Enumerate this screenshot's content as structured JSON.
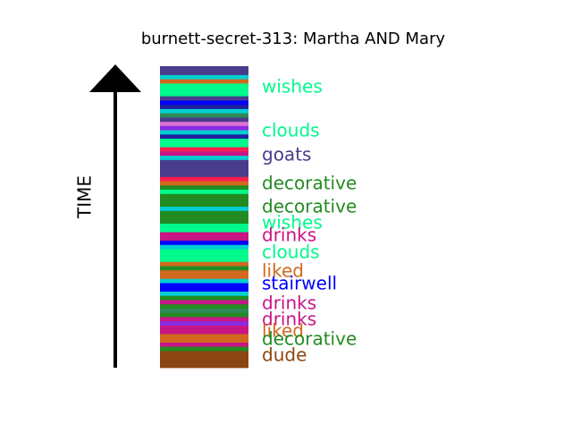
{
  "chart_data": {
    "type": "timeline-strip",
    "title": "burnett-secret-313: Martha AND Mary",
    "axis_label": "TIME",
    "axis_direction": "up",
    "palette": {
      "wishes": "#00fa8c",
      "clouds": "#00fa8c",
      "goats": "#483d8b",
      "decorative": "#228b22",
      "drinks": "#c71585",
      "liked": "#d2691e",
      "stairwell": "#0000ff",
      "dude": "#8b4513",
      "cyan": "#00ced1",
      "red": "#ff1f4f",
      "gray": "#a0a0a0",
      "orchid": "#da70d6",
      "blueviolet": "#8a2be2",
      "navy": "#1f1f9f",
      "olive": "#7a8b2b",
      "teal": "#2e8b57"
    },
    "segments": [
      "dude",
      "dude",
      "dude",
      "dude",
      "decorative",
      "drinks",
      "liked",
      "liked",
      "drinks",
      "drinks",
      "blueviolet",
      "drinks",
      "decorative",
      "teal",
      "decorative",
      "drinks",
      "decorative",
      "cyan",
      "stairwell",
      "stairwell",
      "cyan",
      "liked",
      "liked",
      "decorative",
      "liked",
      "clouds",
      "clouds",
      "clouds",
      "cyan",
      "stairwell",
      "drinks",
      "drinks",
      "wishes",
      "wishes",
      "decorative",
      "decorative",
      "decorative",
      "cyan",
      "decorative",
      "decorative",
      "decorative",
      "wishes",
      "decorative",
      "liked",
      "red",
      "goats",
      "goats",
      "goats",
      "goats",
      "cyan",
      "drinks",
      "red",
      "wishes",
      "wishes",
      "navy",
      "cyan",
      "blueviolet",
      "orchid",
      "goats",
      "teal",
      "cyan",
      "navy",
      "stairwell",
      "goats",
      "wishes",
      "wishes",
      "wishes",
      "liked",
      "cyan",
      "goats",
      "goats"
    ],
    "labels": [
      {
        "text": "wishes",
        "category": "wishes"
      },
      {
        "text": "clouds",
        "category": "clouds"
      },
      {
        "text": "goats",
        "category": "goats"
      },
      {
        "text": "decorative",
        "category": "decorative"
      },
      {
        "text": "decorative",
        "category": "decorative"
      },
      {
        "text": "wishes",
        "category": "wishes"
      },
      {
        "text": "drinks",
        "category": "drinks"
      },
      {
        "text": "clouds",
        "category": "clouds"
      },
      {
        "text": "liked",
        "category": "liked"
      },
      {
        "text": "stairwell",
        "category": "stairwell"
      },
      {
        "text": "drinks",
        "category": "drinks"
      },
      {
        "text": "drinks",
        "category": "drinks"
      },
      {
        "text": "liked",
        "category": "liked"
      },
      {
        "text": "decorative",
        "category": "decorative"
      },
      {
        "text": "dude",
        "category": "dude"
      }
    ]
  }
}
